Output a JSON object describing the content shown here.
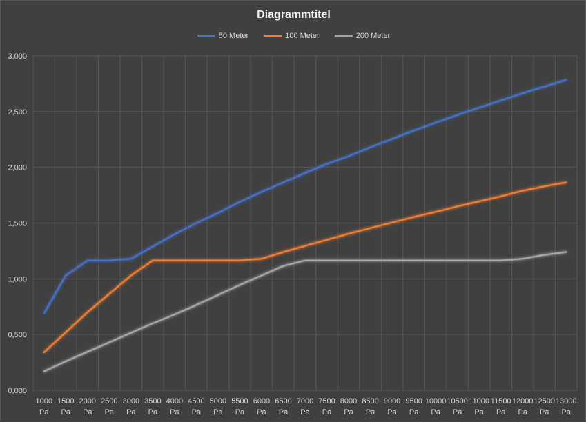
{
  "chart_data": {
    "type": "line",
    "title": "Diagrammtitel",
    "xlabel": "",
    "ylabel": "",
    "categories": [
      "1000 Pa",
      "1500 Pa",
      "2000 Pa",
      "2500 Pa",
      "3000 Pa",
      "3500 Pa",
      "4000 Pa",
      "4500 Pa",
      "5000 Pa",
      "5500 Pa",
      "6000 Pa",
      "6500 Pa",
      "7000 Pa",
      "7500 Pa",
      "8000 Pa",
      "8500 Pa",
      "9000 Pa",
      "9500 Pa",
      "10000 Pa",
      "10500 Pa",
      "11000 Pa",
      "11500 Pa",
      "12000 Pa",
      "12500 Pa",
      "13000 Pa"
    ],
    "category_lines": [
      [
        "1000",
        "Pa"
      ],
      [
        "1500",
        "Pa"
      ],
      [
        "2000",
        "Pa"
      ],
      [
        "2500",
        "Pa"
      ],
      [
        "3000",
        "Pa"
      ],
      [
        "3500",
        "Pa"
      ],
      [
        "4000",
        "Pa"
      ],
      [
        "4500",
        "Pa"
      ],
      [
        "5000",
        "Pa"
      ],
      [
        "5500",
        "Pa"
      ],
      [
        "6000",
        "Pa"
      ],
      [
        "6500",
        "Pa"
      ],
      [
        "7000",
        "Pa"
      ],
      [
        "7500",
        "Pa"
      ],
      [
        "8000",
        "Pa"
      ],
      [
        "8500",
        "Pa"
      ],
      [
        "9000",
        "Pa"
      ],
      [
        "9500",
        "Pa"
      ],
      [
        "10000",
        "Pa"
      ],
      [
        "10500",
        "Pa"
      ],
      [
        "11000",
        "Pa"
      ],
      [
        "11500",
        "Pa"
      ],
      [
        "12000",
        "Pa"
      ],
      [
        "12500",
        "Pa"
      ],
      [
        "13000",
        "Pa"
      ]
    ],
    "ylim": [
      0,
      3
    ],
    "yticks": [
      0,
      0.5,
      1,
      1.5,
      2,
      2.5,
      3
    ],
    "ytick_labels": [
      "0,000",
      "0,500",
      "1,000",
      "1,500",
      "2,000",
      "2,500",
      "3,000"
    ],
    "grid": true,
    "legend_position": "top",
    "series": [
      {
        "name": "50 Meter",
        "color": "#4472c4",
        "values": [
          0.69,
          1.03,
          1.165,
          1.165,
          1.18,
          1.29,
          1.4,
          1.5,
          1.59,
          1.69,
          1.78,
          1.865,
          1.95,
          2.03,
          2.1,
          2.18,
          2.255,
          2.33,
          2.4,
          2.47,
          2.535,
          2.6,
          2.665,
          2.725,
          2.785
        ]
      },
      {
        "name": "100 Meter",
        "color": "#ed7d31",
        "values": [
          0.34,
          0.52,
          0.7,
          0.865,
          1.03,
          1.165,
          1.165,
          1.165,
          1.165,
          1.165,
          1.18,
          1.24,
          1.295,
          1.35,
          1.405,
          1.455,
          1.505,
          1.555,
          1.6,
          1.65,
          1.695,
          1.74,
          1.79,
          1.83,
          1.865
        ]
      },
      {
        "name": "200 Meter",
        "color": "#a5a5a5",
        "values": [
          0.17,
          0.26,
          0.345,
          0.43,
          0.515,
          0.6,
          0.68,
          0.765,
          0.855,
          0.945,
          1.03,
          1.115,
          1.165,
          1.165,
          1.165,
          1.165,
          1.165,
          1.165,
          1.165,
          1.165,
          1.165,
          1.165,
          1.18,
          1.215,
          1.24
        ]
      }
    ]
  }
}
